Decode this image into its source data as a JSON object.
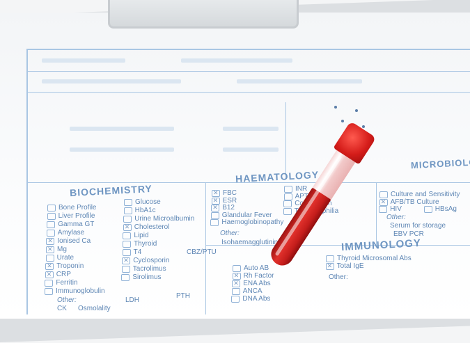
{
  "sections": {
    "biochemistry": "BIOCHEMISTRY",
    "haematology": "HAEMATOLOGY",
    "immunology": "IMMUNOLOGY",
    "microbiology": "MICROBIOLOGY"
  },
  "biochemistry_col1": [
    {
      "label": "Bone Profile",
      "checked": false
    },
    {
      "label": "Liver Profile",
      "checked": false
    },
    {
      "label": "Gamma GT",
      "checked": false
    },
    {
      "label": "Amylase",
      "checked": false
    },
    {
      "label": "Ionised Ca",
      "checked": true
    },
    {
      "label": "Mg",
      "checked": true
    },
    {
      "label": "Urate",
      "checked": false
    },
    {
      "label": "Troponin",
      "checked": true
    },
    {
      "label": "CRP",
      "checked": true
    },
    {
      "label": "Ferritin",
      "checked": false
    },
    {
      "label": "Immunoglobulin",
      "checked": false
    }
  ],
  "biochemistry_col2": [
    {
      "label": "Glucose",
      "checked": false
    },
    {
      "label": "HbA1c",
      "checked": false
    },
    {
      "label": "Urine Microalbumin",
      "checked": false
    },
    {
      "label": "Cholesterol",
      "checked": true
    },
    {
      "label": "Lipid",
      "checked": false
    },
    {
      "label": "Thyroid",
      "checked": false
    },
    {
      "label": "T4",
      "checked": false
    },
    {
      "label": "Cyclosporin",
      "checked": true
    },
    {
      "label": "Tacrolimus",
      "checked": false
    },
    {
      "label": "Sirolimus",
      "checked": false
    }
  ],
  "biochemistry_extra": {
    "cbz": "CBZ/PTU",
    "other": "Other:",
    "ck": "CK",
    "ldh": "LDH",
    "pth": "PTH",
    "osmolality": "Osmolality"
  },
  "haematology_col1": [
    {
      "label": "FBC",
      "checked": true
    },
    {
      "label": "ESR",
      "checked": true
    },
    {
      "label": "B12",
      "checked": true
    },
    {
      "label": "Glandular Fever",
      "checked": false
    },
    {
      "label": "Haemoglobinopathy",
      "checked": false
    }
  ],
  "haematology_col2": [
    {
      "label": "INR",
      "checked": false
    },
    {
      "label": "APTR",
      "checked": false
    },
    {
      "label": "Coagulation",
      "checked": false
    },
    {
      "label": "Thrombophilia",
      "checked": false
    }
  ],
  "haematology_other": {
    "other": "Other:",
    "value": "Isohaemagglutinins"
  },
  "microbiology": [
    {
      "label": "Culture and Sensitivity",
      "checked": false
    },
    {
      "label": "AFB/TB Culture",
      "checked": true
    },
    {
      "label": "HIV",
      "checked": false
    },
    {
      "label": "HBsAg",
      "checked": false
    }
  ],
  "microbiology_other": {
    "other": "Other:",
    "storage": "Serum for storage",
    "ebv": "EBV PCR"
  },
  "immunology_col1": [
    {
      "label": "Auto AB",
      "checked": false
    },
    {
      "label": "Rh Factor",
      "checked": true
    },
    {
      "label": "ENA Abs",
      "checked": true
    },
    {
      "label": "ANCA",
      "checked": false
    },
    {
      "label": "DNA Abs",
      "checked": false
    }
  ],
  "immunology_col2": [
    {
      "label": "Thyroid Microsomal Abs",
      "checked": false
    },
    {
      "label": "Total IgE",
      "checked": true
    }
  ],
  "immunology_other": "Other:",
  "colors": {
    "form_blue": "#6f96c2",
    "blood_red": "#c41d1b",
    "cap_red": "#e0302b"
  }
}
